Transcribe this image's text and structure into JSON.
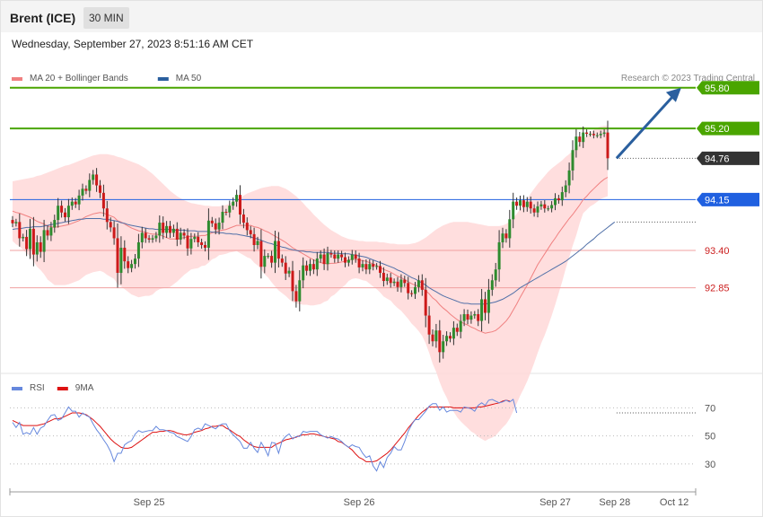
{
  "header": {
    "instrument": "Brent (ICE)",
    "timeframe": "30 MIN"
  },
  "datetime": "Wednesday, September 27, 2023 8:51:16 AM CET",
  "copyright": "Research © 2023 Trading Central",
  "colors": {
    "resistance": "#4aa500",
    "pivot": "#2060e0",
    "support": "#f0a0a0",
    "last": "#333333",
    "bull": "#2e8b2e",
    "bear": "#cc1a1a",
    "band": "#ffd8d8",
    "ma20": "#f08080",
    "ma50": "#5070a8",
    "rsi": "#6688dd",
    "rsi_ma": "#dd1111",
    "arrow": "#2a5f9e"
  },
  "chart_data": [
    {
      "type": "candlestick",
      "legend": [
        {
          "name": "MA 20 + Bollinger Bands",
          "color": "#f08080"
        },
        {
          "name": "MA 50",
          "color": "#2a5f9e"
        }
      ],
      "ylim": [
        91.6,
        96.3
      ],
      "levels": [
        {
          "label": "95.80",
          "value": 95.8,
          "kind": "resistance"
        },
        {
          "label": "95.20",
          "value": 95.2,
          "kind": "resistance"
        },
        {
          "label": "94.76",
          "value": 94.76,
          "kind": "last"
        },
        {
          "label": "94.15",
          "value": 94.15,
          "kind": "pivot"
        },
        {
          "label": "93.40",
          "value": 93.4,
          "kind": "support"
        },
        {
          "label": "92.85",
          "value": 92.85,
          "kind": "support"
        }
      ],
      "x_labels": [
        "Sep 25",
        "Sep 26",
        "Sep 27",
        "Sep 28",
        "Oct 12"
      ],
      "x_label_index": [
        39,
        99,
        155,
        172,
        189
      ],
      "last_bar_index": 171,
      "arrow_target": {
        "index": 191,
        "value": 95.8
      },
      "closes": [
        93.8,
        93.82,
        93.58,
        93.6,
        93.42,
        93.72,
        93.34,
        93.52,
        93.38,
        93.7,
        93.62,
        93.74,
        93.85,
        94.06,
        93.96,
        93.89,
        94.06,
        94.12,
        94.08,
        94.21,
        94.31,
        94.28,
        94.44,
        94.52,
        94.36,
        94.25,
        94.02,
        93.82,
        93.74,
        93.58,
        93.07,
        93.44,
        93.24,
        93.14,
        93.2,
        93.28,
        93.52,
        93.66,
        93.58,
        93.56,
        93.58,
        93.62,
        93.81,
        93.66,
        93.76,
        93.66,
        93.72,
        93.56,
        93.66,
        93.62,
        93.43,
        93.57,
        93.6,
        93.52,
        93.48,
        93.44,
        93.84,
        93.8,
        93.71,
        93.81,
        93.97,
        93.96,
        94.06,
        94.12,
        94.22,
        93.93,
        93.81,
        93.7,
        93.64,
        93.48,
        93.54,
        93.16,
        93.32,
        93.32,
        93.22,
        93.54,
        93.28,
        93.22,
        93.06,
        93.1,
        92.8,
        92.65,
        92.96,
        93.18,
        93.1,
        93.2,
        93.12,
        93.28,
        93.34,
        93.2,
        93.36,
        93.34,
        93.28,
        93.34,
        93.3,
        93.22,
        93.26,
        93.34,
        93.28,
        93.15,
        93.2,
        93.12,
        93.2,
        93.16,
        93.17,
        93.07,
        92.95,
        93.0,
        92.92,
        92.94,
        92.86,
        92.97,
        92.92,
        92.77,
        92.76,
        92.86,
        92.96,
        92.82,
        92.44,
        92.16,
        92.06,
        92.22,
        91.9,
        92.06,
        92.14,
        92.1,
        92.26,
        92.2,
        92.36,
        92.46,
        92.38,
        92.44,
        92.46,
        92.36,
        92.68,
        92.48,
        92.82,
        92.96,
        93.12,
        93.52,
        93.65,
        93.58,
        93.86,
        94.12,
        94.06,
        94.14,
        94.04,
        94.12,
        94.02,
        93.96,
        94.05,
        94.08,
        94.02,
        94.02,
        94.07,
        94.17,
        94.14,
        94.26,
        94.36,
        94.58,
        94.88,
        95.08,
        95.0,
        95.14,
        95.12,
        95.12,
        95.1,
        95.1,
        95.12,
        95.14,
        94.76
      ],
      "ma20": [
        93.98,
        93.96,
        93.95,
        93.93,
        93.91,
        93.89,
        93.86,
        93.83,
        93.81,
        93.79,
        93.76,
        93.75,
        93.74,
        93.75,
        93.76,
        93.77,
        93.78,
        93.8,
        93.82,
        93.84,
        93.87,
        93.9,
        93.92,
        93.94,
        93.95,
        93.96,
        93.95,
        93.93,
        93.91,
        93.89,
        93.84,
        93.82,
        93.79,
        93.76,
        93.73,
        93.71,
        93.69,
        93.68,
        93.67,
        93.65,
        93.64,
        93.64,
        93.63,
        93.61,
        93.59,
        93.57,
        93.57,
        93.57,
        93.58,
        93.59,
        93.6,
        93.61,
        93.61,
        93.61,
        93.62,
        93.62,
        93.64,
        93.66,
        93.67,
        93.69,
        93.7,
        93.71,
        93.73,
        93.75,
        93.77,
        93.77,
        93.77,
        93.77,
        93.77,
        93.75,
        93.74,
        93.72,
        93.69,
        93.67,
        93.64,
        93.61,
        93.58,
        93.55,
        93.52,
        93.48,
        93.44,
        93.41,
        93.38,
        93.35,
        93.32,
        93.29,
        93.26,
        93.24,
        93.22,
        93.21,
        93.2,
        93.21,
        93.21,
        93.22,
        93.23,
        93.24,
        93.26,
        93.27,
        93.27,
        93.26,
        93.25,
        93.24,
        93.22,
        93.2,
        93.18,
        93.15,
        93.12,
        93.1,
        93.08,
        93.05,
        93.02,
        93.0,
        92.97,
        92.94,
        92.91,
        92.89,
        92.87,
        92.85,
        92.81,
        92.76,
        92.7,
        92.66,
        92.6,
        92.55,
        92.51,
        92.46,
        92.42,
        92.38,
        92.35,
        92.32,
        92.3,
        92.27,
        92.25,
        92.22,
        92.2,
        92.18,
        92.19,
        92.2,
        92.22,
        92.26,
        92.31,
        92.36,
        92.43,
        92.52,
        92.61,
        92.71,
        92.8,
        92.89,
        92.99,
        93.09,
        93.19,
        93.27,
        93.35,
        93.43,
        93.51,
        93.58,
        93.66,
        93.73,
        93.8,
        93.87,
        93.93,
        94.0,
        94.07,
        94.15,
        94.2,
        94.26,
        94.31,
        94.36,
        94.41,
        94.45,
        94.48
      ],
      "band_upper": [
        94.42,
        94.43,
        94.44,
        94.45,
        94.46,
        94.47,
        94.48,
        94.5,
        94.51,
        94.53,
        94.55,
        94.57,
        94.59,
        94.61,
        94.63,
        94.65,
        94.66,
        94.68,
        94.7,
        94.72,
        94.74,
        94.76,
        94.78,
        94.8,
        94.81,
        94.82,
        94.82,
        94.82,
        94.81,
        94.8,
        94.78,
        94.77,
        94.75,
        94.73,
        94.71,
        94.69,
        94.67,
        94.64,
        94.61,
        94.57,
        94.53,
        94.48,
        94.43,
        94.38,
        94.33,
        94.28,
        94.24,
        94.2,
        94.17,
        94.14,
        94.12,
        94.1,
        94.09,
        94.08,
        94.07,
        94.06,
        94.06,
        94.05,
        94.05,
        94.05,
        94.06,
        94.07,
        94.09,
        94.12,
        94.15,
        94.18,
        94.21,
        94.24,
        94.26,
        94.28,
        94.3,
        94.32,
        94.33,
        94.34,
        94.35,
        94.35,
        94.35,
        94.33,
        94.31,
        94.28,
        94.24,
        94.2,
        94.15,
        94.1,
        94.04,
        93.99,
        93.93,
        93.88,
        93.83,
        93.78,
        93.74,
        93.7,
        93.67,
        93.64,
        93.61,
        93.59,
        93.57,
        93.56,
        93.55,
        93.54,
        93.54,
        93.53,
        93.53,
        93.53,
        93.53,
        93.52,
        93.52,
        93.51,
        93.5,
        93.5,
        93.49,
        93.49,
        93.49,
        93.49,
        93.5,
        93.51,
        93.53,
        93.56,
        93.59,
        93.63,
        93.67,
        93.71,
        93.74,
        93.77,
        93.79,
        93.81,
        93.82,
        93.82,
        93.82,
        93.82,
        93.82,
        93.81,
        93.8,
        93.79,
        93.78,
        93.77,
        93.76,
        93.76,
        93.76,
        93.76,
        93.77,
        93.79,
        93.83,
        93.88,
        93.94,
        94.01,
        94.08,
        94.16,
        94.24,
        94.31,
        94.38,
        94.44,
        94.5,
        94.56,
        94.61,
        94.65,
        94.69,
        94.73,
        94.78,
        94.82,
        94.87,
        94.92,
        94.98,
        95.04,
        95.09,
        95.14,
        95.18,
        95.21,
        95.23,
        95.24,
        95.24
      ],
      "band_lower": [
        93.54,
        93.49,
        93.46,
        93.41,
        93.36,
        93.31,
        93.24,
        93.16,
        93.11,
        93.05,
        92.97,
        92.93,
        92.89,
        92.89,
        92.89,
        92.89,
        92.9,
        92.92,
        92.94,
        92.96,
        93.0,
        93.04,
        93.06,
        93.08,
        93.09,
        93.1,
        93.08,
        93.04,
        93.01,
        92.98,
        92.9,
        92.87,
        92.83,
        92.79,
        92.75,
        92.73,
        92.71,
        92.72,
        92.73,
        92.73,
        92.75,
        92.8,
        92.83,
        92.84,
        92.85,
        92.86,
        92.9,
        92.94,
        92.99,
        93.04,
        93.08,
        93.12,
        93.13,
        93.14,
        93.17,
        93.18,
        93.22,
        93.27,
        93.29,
        93.33,
        93.34,
        93.35,
        93.37,
        93.38,
        93.39,
        93.36,
        93.33,
        93.3,
        93.28,
        93.22,
        93.18,
        93.12,
        93.05,
        93.0,
        92.93,
        92.87,
        92.81,
        92.77,
        92.73,
        92.68,
        92.64,
        92.62,
        92.61,
        92.6,
        92.6,
        92.59,
        92.59,
        92.6,
        92.61,
        92.64,
        92.66,
        92.72,
        92.75,
        92.8,
        92.85,
        92.89,
        92.95,
        92.98,
        92.99,
        92.98,
        92.96,
        92.95,
        92.91,
        92.87,
        92.83,
        92.78,
        92.72,
        92.69,
        92.66,
        92.6,
        92.55,
        92.51,
        92.45,
        92.39,
        92.32,
        92.27,
        92.21,
        92.14,
        92.03,
        91.89,
        91.73,
        91.61,
        91.46,
        91.33,
        91.23,
        91.11,
        91.02,
        90.94,
        90.88,
        90.83,
        90.78,
        90.73,
        90.7,
        90.65,
        90.62,
        90.59,
        90.62,
        90.64,
        90.67,
        90.73,
        90.79,
        90.84,
        90.92,
        91.03,
        91.14,
        91.26,
        91.36,
        91.47,
        91.6,
        91.74,
        91.89,
        92.03,
        92.15,
        92.29,
        92.44,
        92.6,
        92.77,
        92.94,
        93.13,
        93.3,
        93.47,
        93.62,
        93.8,
        93.95,
        94.0,
        94.05,
        94.08,
        94.12,
        94.16,
        94.18,
        94.2
      ],
      "ma50": [
        93.71,
        93.72,
        93.72,
        93.73,
        93.74,
        93.74,
        93.75,
        93.75,
        93.75,
        93.76,
        93.77,
        93.78,
        93.79,
        93.8,
        93.81,
        93.82,
        93.83,
        93.84,
        93.85,
        93.86,
        93.86,
        93.87,
        93.87,
        93.87,
        93.87,
        93.87,
        93.86,
        93.86,
        93.85,
        93.84,
        93.83,
        93.81,
        93.8,
        93.78,
        93.77,
        93.76,
        93.75,
        93.74,
        93.73,
        93.72,
        93.72,
        93.71,
        93.71,
        93.71,
        93.71,
        93.71,
        93.7,
        93.7,
        93.7,
        93.7,
        93.69,
        93.69,
        93.69,
        93.68,
        93.68,
        93.68,
        93.68,
        93.67,
        93.67,
        93.66,
        93.66,
        93.65,
        93.65,
        93.64,
        93.64,
        93.63,
        93.62,
        93.61,
        93.6,
        93.58,
        93.57,
        93.55,
        93.53,
        93.51,
        93.5,
        93.48,
        93.47,
        93.45,
        93.44,
        93.42,
        93.41,
        93.4,
        93.39,
        93.39,
        93.38,
        93.38,
        93.37,
        93.37,
        93.37,
        93.37,
        93.37,
        93.36,
        93.36,
        93.36,
        93.35,
        93.35,
        93.35,
        93.34,
        93.33,
        93.32,
        93.31,
        93.3,
        93.28,
        93.26,
        93.24,
        93.22,
        93.2,
        93.18,
        93.16,
        93.14,
        93.11,
        93.09,
        93.06,
        93.03,
        93.0,
        92.98,
        92.95,
        92.92,
        92.89,
        92.85,
        92.82,
        92.79,
        92.76,
        92.73,
        92.71,
        92.69,
        92.67,
        92.65,
        92.63,
        92.62,
        92.62,
        92.61,
        92.61,
        92.61,
        92.61,
        92.61,
        92.62,
        92.63,
        92.64,
        92.66,
        92.68,
        92.71,
        92.74,
        92.77,
        92.81,
        92.85,
        92.88,
        92.91,
        92.94,
        92.97,
        93.0,
        93.03,
        93.06,
        93.09,
        93.12,
        93.15,
        93.18,
        93.21,
        93.24,
        93.28,
        93.32,
        93.36,
        93.4,
        93.44,
        93.49,
        93.53,
        93.57,
        93.62,
        93.66,
        93.7,
        93.74,
        93.78,
        93.82
      ]
    },
    {
      "type": "line",
      "legend": [
        {
          "name": "RSI",
          "color": "#6688dd"
        },
        {
          "name": "9MA",
          "color": "#dd1111"
        }
      ],
      "ylim": [
        12,
        92
      ],
      "ticks": [
        {
          "label": "70",
          "value": 70
        },
        {
          "label": "50",
          "value": 50
        },
        {
          "label": "30",
          "value": 30
        }
      ],
      "rsi": [
        59.6,
        56.0,
        59.6,
        51.2,
        52.4,
        51.2,
        56.0,
        51.2,
        55.5,
        57.0,
        61.0,
        64.6,
        65.2,
        61.0,
        62.2,
        66.4,
        70.6,
        67.6,
        67.6,
        63.4,
        66.4,
        64.6,
        63.4,
        58.6,
        54.4,
        51.2,
        47.2,
        43.6,
        38.8,
        31.6,
        37.6,
        37.6,
        43.6,
        45.4,
        46.6,
        51.2,
        53.8,
        52.6,
        53.2,
        53.8,
        53.8,
        56.8,
        54.4,
        54.4,
        53.8,
        52.6,
        52.0,
        49.6,
        48.4,
        47.2,
        46.0,
        49.6,
        54.4,
        55.6,
        54.4,
        58.6,
        57.4,
        56.2,
        55.0,
        57.4,
        58.6,
        58.6,
        53.8,
        50.8,
        48.4,
        46.0,
        41.2,
        41.2,
        45.4,
        41.2,
        38.2,
        45.4,
        41.2,
        35.8,
        45.4,
        44.8,
        37.6,
        46.6,
        49.6,
        51.4,
        47.8,
        49.6,
        49.6,
        53.2,
        52.6,
        53.2,
        53.2,
        53.2,
        50.8,
        49.6,
        48.4,
        49.6,
        48.4,
        47.8,
        46.0,
        43.6,
        41.8,
        43.6,
        42.4,
        41.8,
        37.6,
        34.6,
        35.8,
        28.6,
        25.0,
        31.6,
        27.4,
        34.6,
        37.6,
        42.4,
        40.0,
        40.0,
        46.0,
        53.2,
        58.0,
        61.6,
        61.6,
        64.6,
        67.6,
        71.2,
        73.0,
        73.0,
        68.2,
        70.6,
        67.0,
        68.2,
        68.2,
        68.2,
        67.0,
        70.6,
        70.0,
        69.4,
        67.6,
        71.8,
        73.6,
        71.8,
        75.4,
        76.0,
        74.8,
        73.6,
        74.2,
        75.4,
        74.2,
        76.0,
        66.4
      ],
      "rsi_ma": [
        61.0,
        59.8,
        58.6,
        57.4,
        57.4,
        57.4,
        57.4,
        57.4,
        58.0,
        58.6,
        59.8,
        61.0,
        62.2,
        62.2,
        62.8,
        64.0,
        65.2,
        66.4,
        66.4,
        66.4,
        65.8,
        65.2,
        63.4,
        61.6,
        59.2,
        56.8,
        53.8,
        50.8,
        47.8,
        45.4,
        43.6,
        41.8,
        41.2,
        41.2,
        41.8,
        43.6,
        45.4,
        47.2,
        49.0,
        50.8,
        52.6,
        52.6,
        53.2,
        53.2,
        53.8,
        53.8,
        53.2,
        52.0,
        51.4,
        50.8,
        50.8,
        51.4,
        52.6,
        53.2,
        53.8,
        55.0,
        55.6,
        56.8,
        56.8,
        57.4,
        57.4,
        55.6,
        54.4,
        52.6,
        50.8,
        49.6,
        47.2,
        45.4,
        43.6,
        42.4,
        41.8,
        41.8,
        41.8,
        41.8,
        41.8,
        43.6,
        44.8,
        46.0,
        47.2,
        47.8,
        48.4,
        49.0,
        50.2,
        50.8,
        50.8,
        51.4,
        51.4,
        50.8,
        50.2,
        49.6,
        49.0,
        48.4,
        47.8,
        46.0,
        45.4,
        43.6,
        41.8,
        40.0,
        37.0,
        34.6,
        33.4,
        31.6,
        31.6,
        31.6,
        32.2,
        34.0,
        35.8,
        37.6,
        40.0,
        43.0,
        46.0,
        49.0,
        52.0,
        55.6,
        58.6,
        61.6,
        64.6,
        67.0,
        68.8,
        70.6,
        70.6,
        70.6,
        70.6,
        70.6,
        70.6,
        70.6,
        70.0,
        70.0,
        70.0,
        70.0,
        70.0,
        70.0,
        70.0,
        70.6,
        70.6,
        71.2,
        71.8,
        72.4,
        73.0,
        73.6,
        74.8,
        75.4,
        74.8
      ]
    }
  ]
}
